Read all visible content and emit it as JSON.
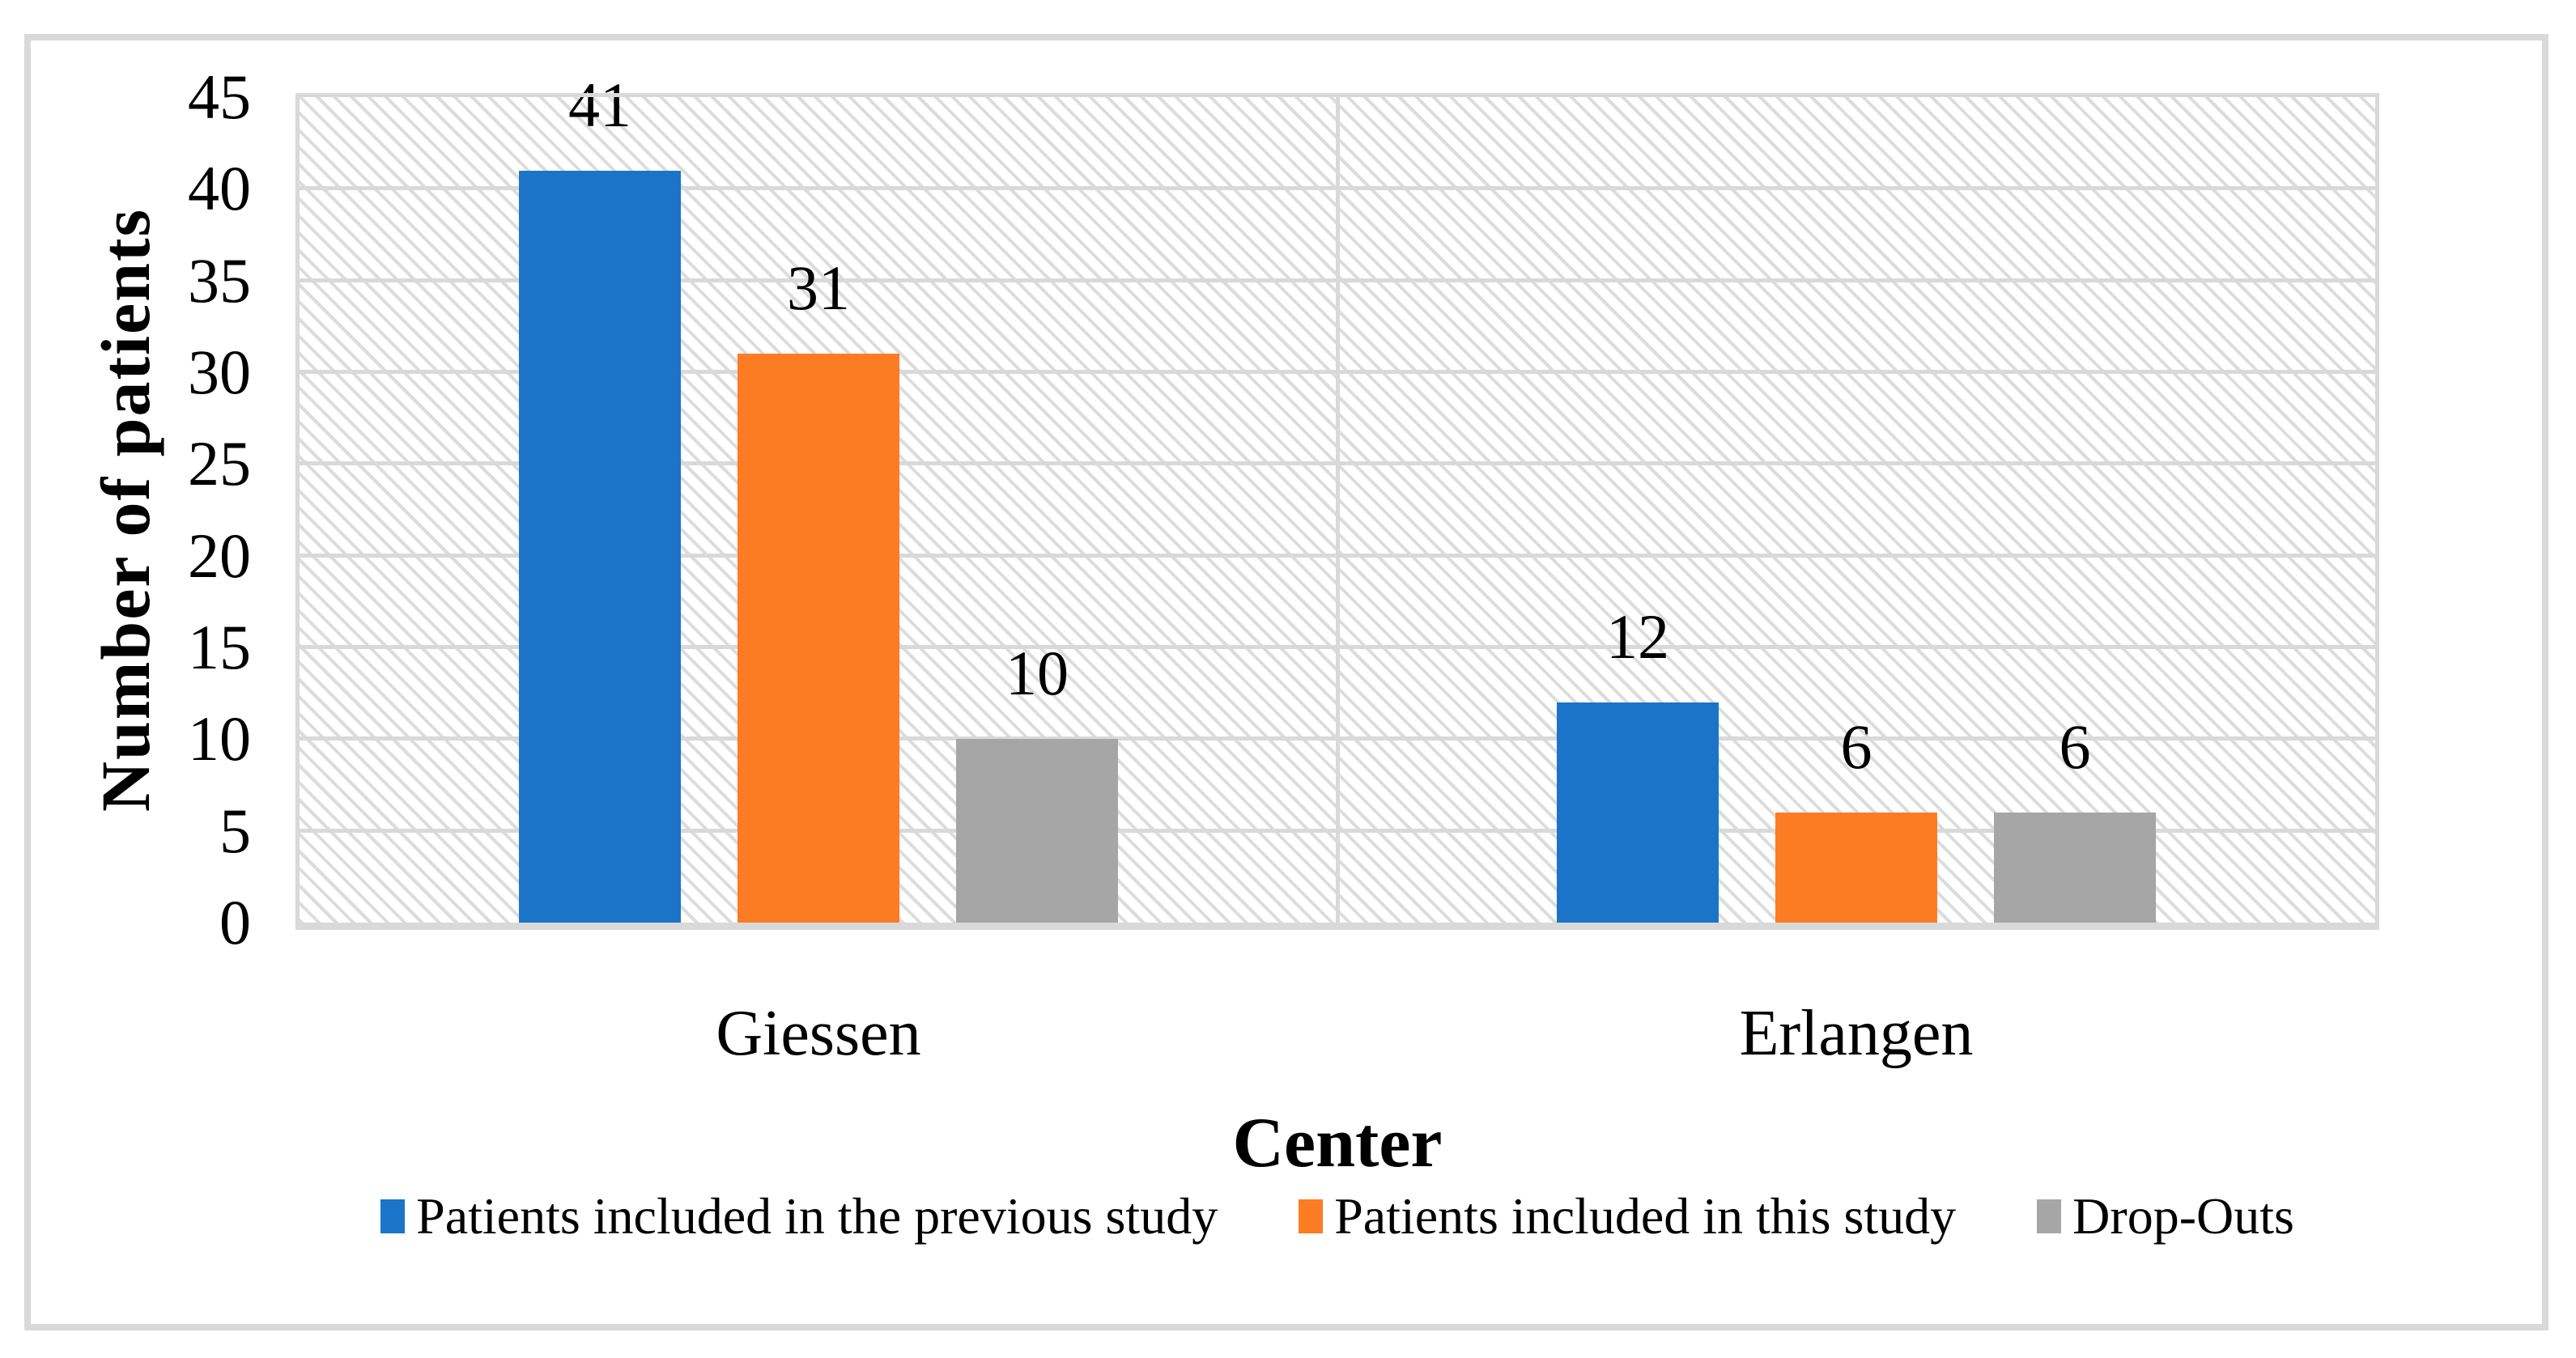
{
  "chart_data": {
    "type": "bar",
    "title": "",
    "xlabel": "Center",
    "ylabel": "Number of patients",
    "categories": [
      "Giessen",
      "Erlangen"
    ],
    "series": [
      {
        "name": "Patients included in the previous study",
        "color": "#1B74C8",
        "values": [
          41,
          12
        ]
      },
      {
        "name": "Patients included in this study",
        "color": "#FC7C24",
        "values": [
          31,
          6
        ]
      },
      {
        "name": "Drop-Outs",
        "color": "#A6A6A6",
        "values": [
          10,
          6
        ]
      }
    ],
    "ylim": [
      0,
      45
    ],
    "ytick_step": 5,
    "yticks": [
      0,
      5,
      10,
      15,
      20,
      25,
      30,
      35,
      40,
      45
    ],
    "data_labels_shown": true,
    "grid": "horizontal gridlines every 5 units plus one vertical category divider",
    "legend_position": "bottom"
  },
  "style": {
    "gridline_color": "#D9D9D9",
    "frame_border_color": "#D9D9D9",
    "axis_line_color": "#D9D9D9",
    "plot_hatch_color": "#DCDCDC",
    "text_color": "#000000",
    "background_color": "#FFFFFF"
  }
}
